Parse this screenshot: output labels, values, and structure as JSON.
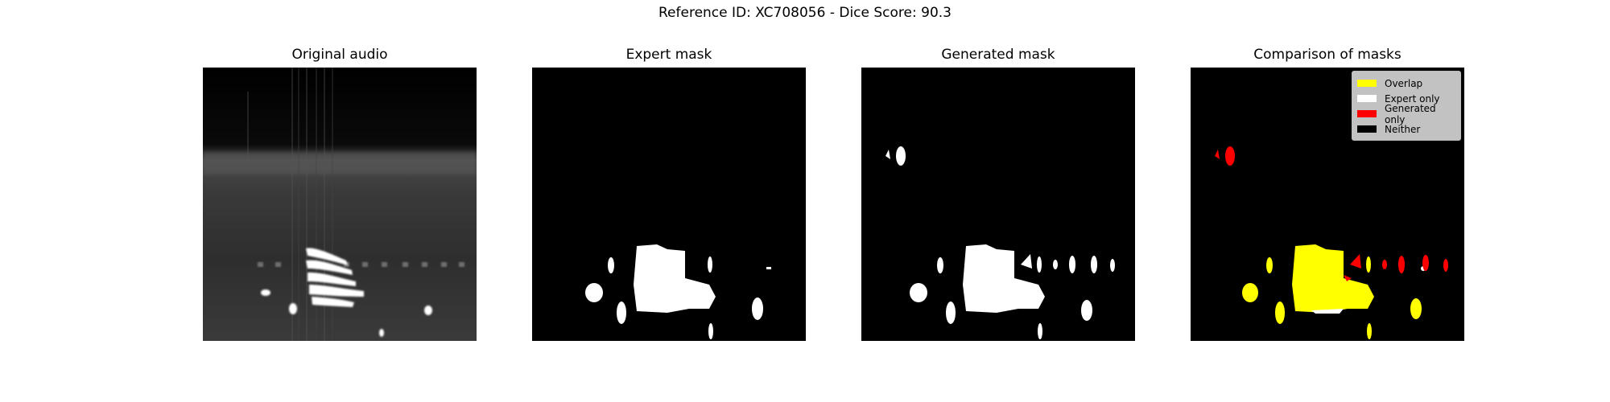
{
  "suptitle": "Reference ID: XC708056 - Dice Score: 90.3",
  "panels": [
    {
      "title": "Original audio"
    },
    {
      "title": "Expert mask"
    },
    {
      "title": "Generated mask"
    },
    {
      "title": "Comparison of masks"
    }
  ],
  "legend": [
    {
      "label": "Overlap",
      "color": "#ffff00"
    },
    {
      "label": "Expert only",
      "color": "#ffffff"
    },
    {
      "label": "Generated only",
      "color": "#ff0000"
    },
    {
      "label": "Neither",
      "color": "#000000"
    }
  ],
  "colors": {
    "background": "#000000",
    "mask": "#ffffff",
    "overlap": "#ffff00",
    "generated_only": "#ff0000"
  }
}
